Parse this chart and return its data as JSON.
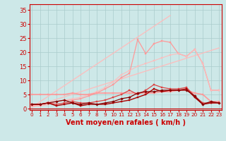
{
  "background_color": "#cde8e8",
  "grid_color": "#aacccc",
  "xlabel": "Vent moyen/en rafales ( km/h )",
  "xlabel_color": "#cc0000",
  "xlabel_fontsize": 7,
  "yticks": [
    0,
    5,
    10,
    15,
    20,
    25,
    30,
    35
  ],
  "xticks": [
    0,
    1,
    2,
    3,
    4,
    5,
    6,
    7,
    8,
    9,
    10,
    11,
    12,
    13,
    14,
    15,
    16,
    17,
    18,
    19,
    20,
    21,
    22,
    23
  ],
  "tick_color": "#cc0000",
  "xlim": [
    -0.3,
    23.3
  ],
  "ylim": [
    -0.5,
    37
  ],
  "series": [
    {
      "x": [
        0,
        17
      ],
      "y": [
        0.5,
        33.0
      ],
      "color": "#ffbbbb",
      "lw": 1.0,
      "marker": "none",
      "ms": 0,
      "alpha": 0.9,
      "linestyle": "-"
    },
    {
      "x": [
        0,
        23
      ],
      "y": [
        0.5,
        21.5
      ],
      "color": "#ffbbbb",
      "lw": 1.0,
      "marker": "none",
      "ms": 0,
      "alpha": 0.9,
      "linestyle": "-"
    },
    {
      "x": [
        0,
        1,
        2,
        3,
        4,
        5,
        6,
        7,
        8,
        9,
        10,
        11,
        12,
        13,
        14,
        15,
        16,
        17,
        18,
        19,
        20,
        21,
        22,
        23
      ],
      "y": [
        1.0,
        1.0,
        1.5,
        2.5,
        3.0,
        3.0,
        3.5,
        4.5,
        5.5,
        7.0,
        8.5,
        11.0,
        12.5,
        24.5,
        19.5,
        23.0,
        24.0,
        23.5,
        19.5,
        18.5,
        21.0,
        16.0,
        6.5,
        6.5
      ],
      "color": "#ff9999",
      "lw": 0.9,
      "marker": "s",
      "ms": 2.0,
      "alpha": 1.0,
      "linestyle": "-"
    },
    {
      "x": [
        0,
        1,
        2,
        3,
        4,
        5,
        6,
        7,
        8,
        9,
        10,
        11,
        12,
        13,
        14,
        15,
        16,
        17,
        18,
        19,
        20,
        21,
        22,
        23
      ],
      "y": [
        1.0,
        1.0,
        1.5,
        2.5,
        3.0,
        3.5,
        4.0,
        5.0,
        6.0,
        7.5,
        9.5,
        12.0,
        13.5,
        15.0,
        16.0,
        17.0,
        18.0,
        19.0,
        19.5,
        18.5,
        21.0,
        16.0,
        6.5,
        6.5
      ],
      "color": "#ffbbbb",
      "lw": 0.9,
      "marker": "s",
      "ms": 2.0,
      "alpha": 0.85,
      "linestyle": "-"
    },
    {
      "x": [
        0,
        1,
        2,
        3,
        4,
        5,
        6,
        7,
        8,
        9,
        10,
        11,
        12,
        13,
        14,
        15,
        16,
        17,
        18,
        19,
        20,
        21,
        22,
        23
      ],
      "y": [
        5.0,
        5.0,
        5.0,
        5.0,
        5.0,
        5.5,
        5.0,
        5.0,
        5.5,
        5.5,
        5.5,
        5.5,
        5.5,
        5.5,
        5.5,
        5.5,
        6.0,
        6.0,
        6.5,
        6.5,
        5.5,
        5.0,
        2.5,
        2.5
      ],
      "color": "#ff9999",
      "lw": 1.2,
      "marker": "s",
      "ms": 2.0,
      "alpha": 1.0,
      "linestyle": "-"
    },
    {
      "x": [
        0,
        1,
        2,
        3,
        4,
        5,
        6,
        7,
        8,
        9,
        10,
        11,
        12,
        13,
        14,
        15,
        16,
        17,
        18,
        19,
        20,
        21,
        22,
        23
      ],
      "y": [
        1.5,
        1.5,
        2.0,
        1.5,
        2.0,
        2.5,
        2.0,
        2.0,
        2.5,
        3.0,
        4.0,
        5.0,
        6.5,
        5.0,
        6.5,
        8.5,
        7.5,
        7.0,
        7.0,
        7.5,
        4.5,
        2.0,
        2.0,
        2.0
      ],
      "color": "#dd4444",
      "lw": 0.9,
      "marker": "s",
      "ms": 2.0,
      "alpha": 1.0,
      "linestyle": "-"
    },
    {
      "x": [
        0,
        1,
        2,
        3,
        4,
        5,
        6,
        7,
        8,
        9,
        10,
        11,
        12,
        13,
        14,
        15,
        16,
        17,
        18,
        19,
        20,
        21,
        22,
        23
      ],
      "y": [
        1.5,
        1.5,
        2.0,
        1.0,
        1.5,
        2.0,
        1.0,
        1.5,
        1.5,
        1.5,
        2.0,
        2.5,
        3.0,
        4.0,
        5.0,
        7.0,
        6.0,
        6.5,
        6.5,
        7.0,
        4.0,
        1.5,
        2.0,
        2.0
      ],
      "color": "#aa0000",
      "lw": 1.0,
      "marker": "s",
      "ms": 2.0,
      "alpha": 1.0,
      "linestyle": "-"
    },
    {
      "x": [
        0,
        1,
        2,
        3,
        4,
        5,
        6,
        7,
        8,
        9,
        10,
        11,
        12,
        13,
        14,
        15,
        16,
        17,
        18,
        19,
        20,
        21,
        22,
        23
      ],
      "y": [
        1.5,
        1.5,
        2.0,
        2.5,
        3.0,
        2.0,
        1.5,
        2.0,
        1.5,
        2.0,
        2.5,
        3.5,
        4.0,
        5.5,
        6.0,
        6.0,
        6.5,
        6.5,
        6.5,
        6.5,
        4.5,
        1.5,
        2.5,
        2.0
      ],
      "color": "#880000",
      "lw": 0.9,
      "marker": "D",
      "ms": 1.8,
      "alpha": 1.0,
      "linestyle": "-"
    }
  ],
  "spine_color": "#cc0000",
  "axhline_color": "#cc0000",
  "axhline_lw": 0.8
}
